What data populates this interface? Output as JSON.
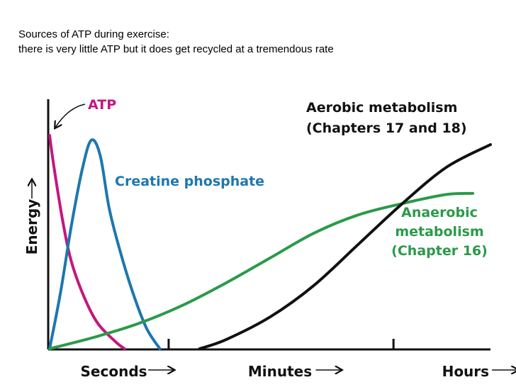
{
  "caption": {
    "line1": "Sources of ATP during exercise:",
    "line2": "there is very little ATP but it does get recycled at a tremendous rate"
  },
  "chart_data": {
    "type": "line",
    "title": "",
    "ylabel": "Energy",
    "xlabel": "",
    "x_scale": "time segments (seconds → minutes → hours), arbitrary units 0–10",
    "xlim": [
      0,
      10
    ],
    "ylim": [
      0,
      100
    ],
    "grid": false,
    "x_ticks": [
      {
        "label": "Seconds",
        "x": 0.7
      },
      {
        "label": "Minutes",
        "x": 4.5
      },
      {
        "label": "Hours",
        "x": 8.9
      }
    ],
    "tick_marks_x": [
      2.7,
      7.8
    ],
    "series": [
      {
        "name": "ATP",
        "color": "#c3177f",
        "label": "ATP",
        "x": [
          0.0,
          0.1,
          0.3,
          0.5,
          0.8,
          1.1,
          1.5,
          1.7
        ],
        "y": [
          94,
          80,
          56,
          38,
          22,
          11,
          3,
          0
        ]
      },
      {
        "name": "Creatine phosphate",
        "color": "#1d77ae",
        "label": "Creatine phosphate",
        "x": [
          0.0,
          0.25,
          0.5,
          0.75,
          0.95,
          1.15,
          1.35,
          1.6,
          1.9,
          2.2,
          2.5
        ],
        "y": [
          0,
          25,
          55,
          80,
          92,
          85,
          62,
          43,
          24,
          9,
          0
        ]
      },
      {
        "name": "Anaerobic metabolism",
        "color": "#2a9a4a",
        "label_lines": [
          "Anaerobic",
          "metabolism",
          "(Chapter 16)"
        ],
        "x": [
          0.0,
          1.0,
          2.0,
          3.0,
          4.0,
          5.0,
          6.0,
          7.0,
          8.0,
          9.0,
          9.6
        ],
        "y": [
          0,
          5,
          11,
          19,
          29,
          40,
          51,
          59,
          64,
          68,
          68.5
        ]
      },
      {
        "name": "Aerobic metabolism",
        "color": "#111111",
        "label_lines": [
          "Aerobic metabolism",
          "(Chapters 17 and 18)"
        ],
        "x": [
          3.4,
          4.0,
          5.0,
          6.0,
          7.0,
          8.0,
          9.0,
          10.0
        ],
        "y": [
          0,
          4,
          14,
          28,
          46,
          64,
          80,
          90
        ]
      }
    ]
  }
}
